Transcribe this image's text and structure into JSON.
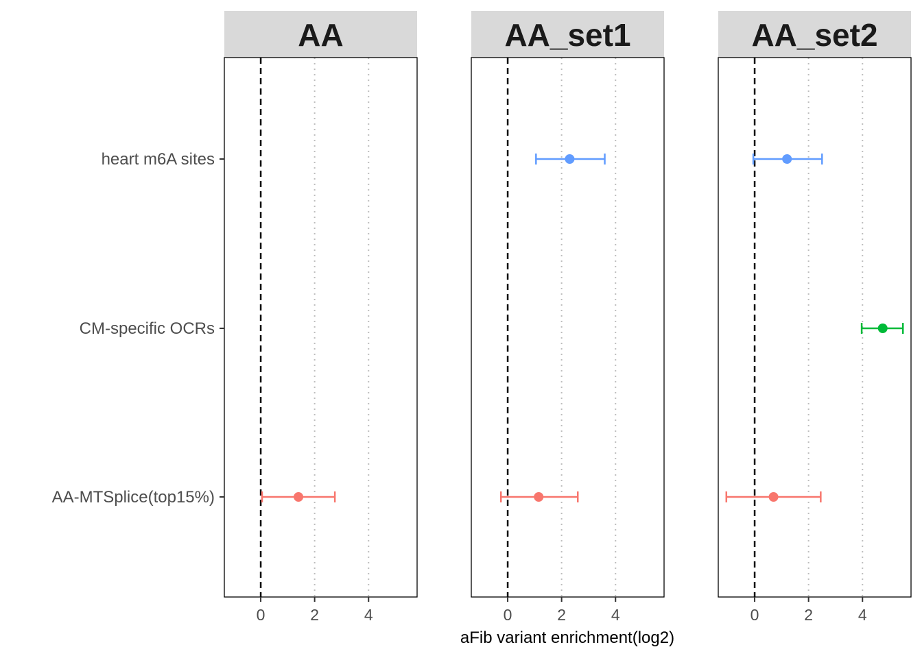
{
  "chart_data": {
    "type": "forest",
    "xlabel": "aFib variant enrichment(log2)",
    "xlim": [
      -1.35,
      5.8
    ],
    "xticks": [
      0,
      2,
      4
    ],
    "xtick_labels": [
      "0",
      "2",
      "4"
    ],
    "reference_line": 0,
    "categories": [
      "heart m6A sites",
      "CM-specific OCRs",
      "AA-MTSplice(top15%)"
    ],
    "colors": {
      "heart m6A sites": "#619CFF",
      "CM-specific OCRs": "#00BA38",
      "AA-MTSplice(top15%)": "#F8766D"
    },
    "panels": [
      {
        "title": "AA",
        "points": [
          {
            "category": "AA-MTSplice(top15%)",
            "estimate": 1.4,
            "lower": 0.05,
            "upper": 2.75
          }
        ]
      },
      {
        "title": "AA_set1",
        "points": [
          {
            "category": "heart m6A sites",
            "estimate": 2.3,
            "lower": 1.05,
            "upper": 3.6
          },
          {
            "category": "AA-MTSplice(top15%)",
            "estimate": 1.15,
            "lower": -0.25,
            "upper": 2.6
          }
        ]
      },
      {
        "title": "AA_set2",
        "points": [
          {
            "category": "heart m6A sites",
            "estimate": 1.2,
            "lower": -0.05,
            "upper": 2.5
          },
          {
            "category": "CM-specific OCRs",
            "estimate": 4.75,
            "lower": 3.97,
            "upper": 5.5
          },
          {
            "category": "AA-MTSplice(top15%)",
            "estimate": 0.7,
            "lower": -1.05,
            "upper": 2.45
          }
        ]
      }
    ]
  }
}
